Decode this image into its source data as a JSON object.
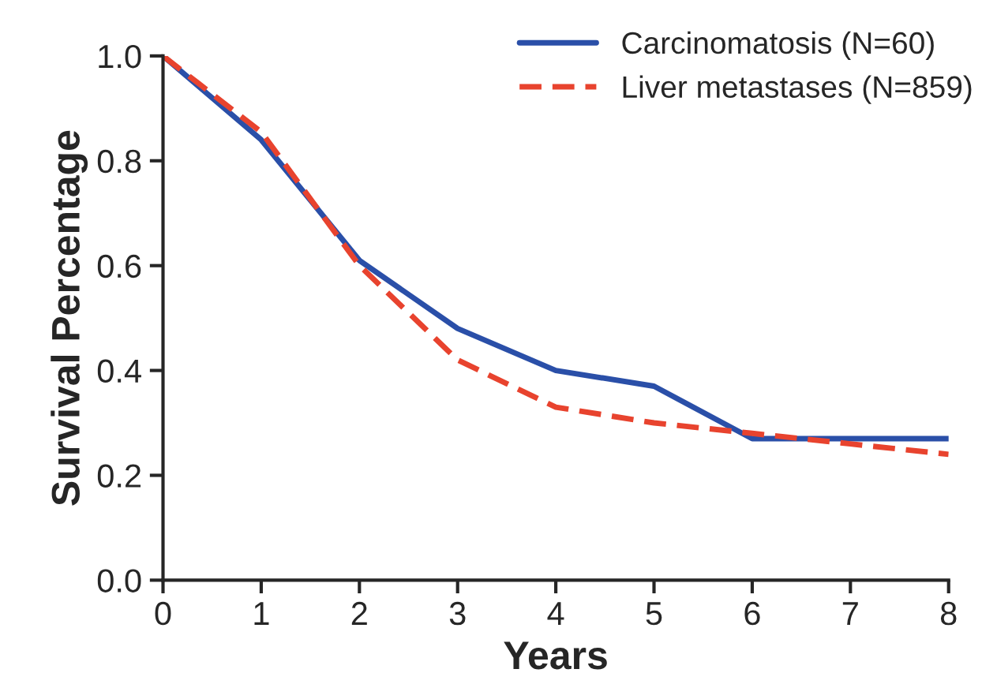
{
  "chart_data": {
    "type": "line",
    "xlabel": "Years",
    "ylabel": "Survival Percentage",
    "x": [
      0,
      1,
      2,
      3,
      4,
      5,
      6,
      7,
      8
    ],
    "series": [
      {
        "name": "Carcinomatosis (N=60)",
        "color": "#2a4fa8",
        "line_style": "solid",
        "values": [
          1.0,
          0.84,
          0.61,
          0.48,
          0.4,
          0.37,
          0.27,
          0.27,
          0.27
        ]
      },
      {
        "name": "Liver metastases (N=859)",
        "color": "#e8432e",
        "line_style": "dashed",
        "values": [
          1.0,
          0.855,
          0.6,
          0.42,
          0.33,
          0.3,
          0.28,
          0.26,
          0.24
        ]
      }
    ],
    "xlim": [
      0,
      8
    ],
    "xticks": [
      0,
      1,
      2,
      3,
      4,
      5,
      6,
      7,
      8
    ],
    "ylim": [
      0,
      1.0
    ],
    "yticks": [
      {
        "value": 0,
        "label": "0.0"
      },
      {
        "value": 0.2,
        "label": "0.2"
      },
      {
        "value": 0.4,
        "label": "0.4"
      },
      {
        "value": 0.6,
        "label": "0.6"
      },
      {
        "value": 0.8,
        "label": "0.8"
      },
      {
        "value": 1.0,
        "label": "1.0"
      }
    ],
    "grid": false,
    "legend": "top right",
    "marker": "none"
  }
}
